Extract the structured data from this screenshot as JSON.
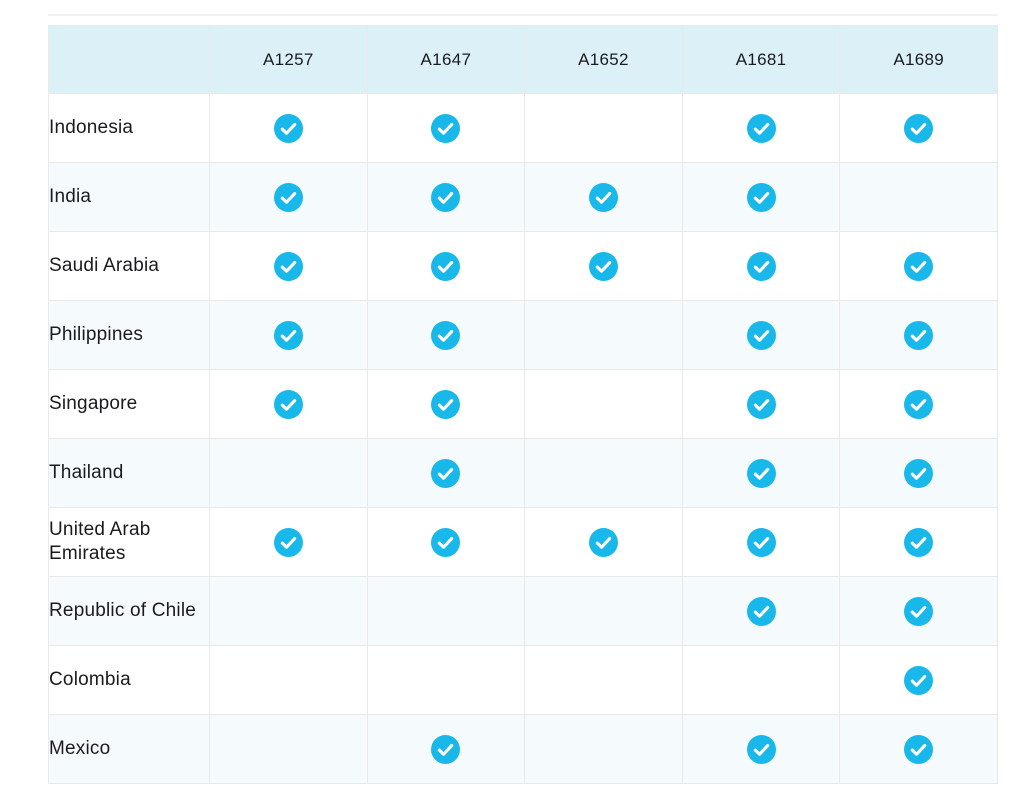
{
  "chart_data": {
    "type": "table",
    "column_headers": [
      "A1257",
      "A1647",
      "A1652",
      "A1681",
      "A1689"
    ],
    "rows": [
      {
        "country": "Indonesia",
        "checks": [
          true,
          true,
          false,
          true,
          true
        ]
      },
      {
        "country": "India",
        "checks": [
          true,
          true,
          true,
          true,
          false
        ]
      },
      {
        "country": "Saudi Arabia",
        "checks": [
          true,
          true,
          true,
          true,
          true
        ]
      },
      {
        "country": "Philippines",
        "checks": [
          true,
          true,
          false,
          true,
          true
        ]
      },
      {
        "country": "Singapore",
        "checks": [
          true,
          true,
          false,
          true,
          true
        ]
      },
      {
        "country": "Thailand",
        "checks": [
          false,
          true,
          false,
          true,
          true
        ]
      },
      {
        "country": "United Arab Emirates",
        "checks": [
          true,
          true,
          true,
          true,
          true
        ]
      },
      {
        "country": "Republic of Chile",
        "checks": [
          false,
          false,
          false,
          true,
          true
        ]
      },
      {
        "country": "Colombia",
        "checks": [
          false,
          false,
          false,
          false,
          true
        ]
      },
      {
        "country": "Mexico",
        "checks": [
          false,
          true,
          false,
          true,
          true
        ]
      }
    ],
    "cell_marker_icon": "check-badge-icon"
  },
  "style": {
    "header_bg": "#dcf0f8",
    "alt_row_bg": "#f5fafd",
    "border_color": "#e9e9e9",
    "text_color": "#1b1b1d",
    "check_color": "#19b8ea",
    "check_glyph_color": "#ffffff"
  }
}
